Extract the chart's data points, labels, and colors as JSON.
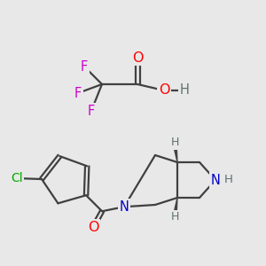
{
  "bg_color": "#e8e8e8",
  "atom_colors": {
    "O": "#ff0000",
    "F": "#cc00cc",
    "N": "#0000cc",
    "Cl": "#00aa00",
    "C": "#222222",
    "H": "#607070"
  },
  "bond_color": "#404040",
  "bond_lw": 1.6,
  "font_size": 9.5
}
